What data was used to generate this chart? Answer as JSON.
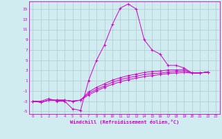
{
  "xlabel": "Windchill (Refroidissement éolien,°C)",
  "background_color": "#d0ecf0",
  "line_color": "#cc00cc",
  "grid_color": "#aacccc",
  "xlim": [
    -0.5,
    23.5
  ],
  "ylim": [
    -5.5,
    16.5
  ],
  "xticks": [
    0,
    1,
    2,
    3,
    4,
    5,
    6,
    7,
    8,
    9,
    10,
    11,
    12,
    13,
    14,
    15,
    16,
    17,
    18,
    19,
    20,
    21,
    22,
    23
  ],
  "yticks": [
    -5,
    -3,
    -1,
    1,
    3,
    5,
    7,
    9,
    11,
    13,
    15
  ],
  "series": [
    [
      -3,
      -3,
      -2.5,
      -3,
      -3,
      -4.5,
      -4.8,
      1,
      5,
      8,
      12,
      15.2,
      16,
      15,
      9,
      7,
      6.2,
      4,
      4,
      3.5,
      2.5,
      2.5,
      2.7
    ],
    [
      -3,
      -3.2,
      -2.8,
      -2.8,
      -2.8,
      -3,
      -2.8,
      -1.8,
      -1.0,
      -0.3,
      0.3,
      0.8,
      1.2,
      1.5,
      1.8,
      2.0,
      2.2,
      2.4,
      2.5,
      2.6,
      2.5,
      2.5,
      2.7
    ],
    [
      -3,
      -3.2,
      -2.8,
      -2.8,
      -2.8,
      -3,
      -2.8,
      -1.5,
      -0.7,
      0.0,
      0.7,
      1.2,
      1.6,
      1.9,
      2.2,
      2.4,
      2.5,
      2.7,
      2.8,
      2.9,
      2.5,
      2.5,
      2.7
    ],
    [
      -3,
      -3.2,
      -2.8,
      -2.8,
      -2.8,
      -3,
      -2.8,
      -1.2,
      -0.3,
      0.4,
      1.1,
      1.6,
      2.0,
      2.3,
      2.6,
      2.8,
      2.9,
      3.1,
      3.1,
      3.2,
      2.5,
      2.5,
      2.7
    ]
  ]
}
